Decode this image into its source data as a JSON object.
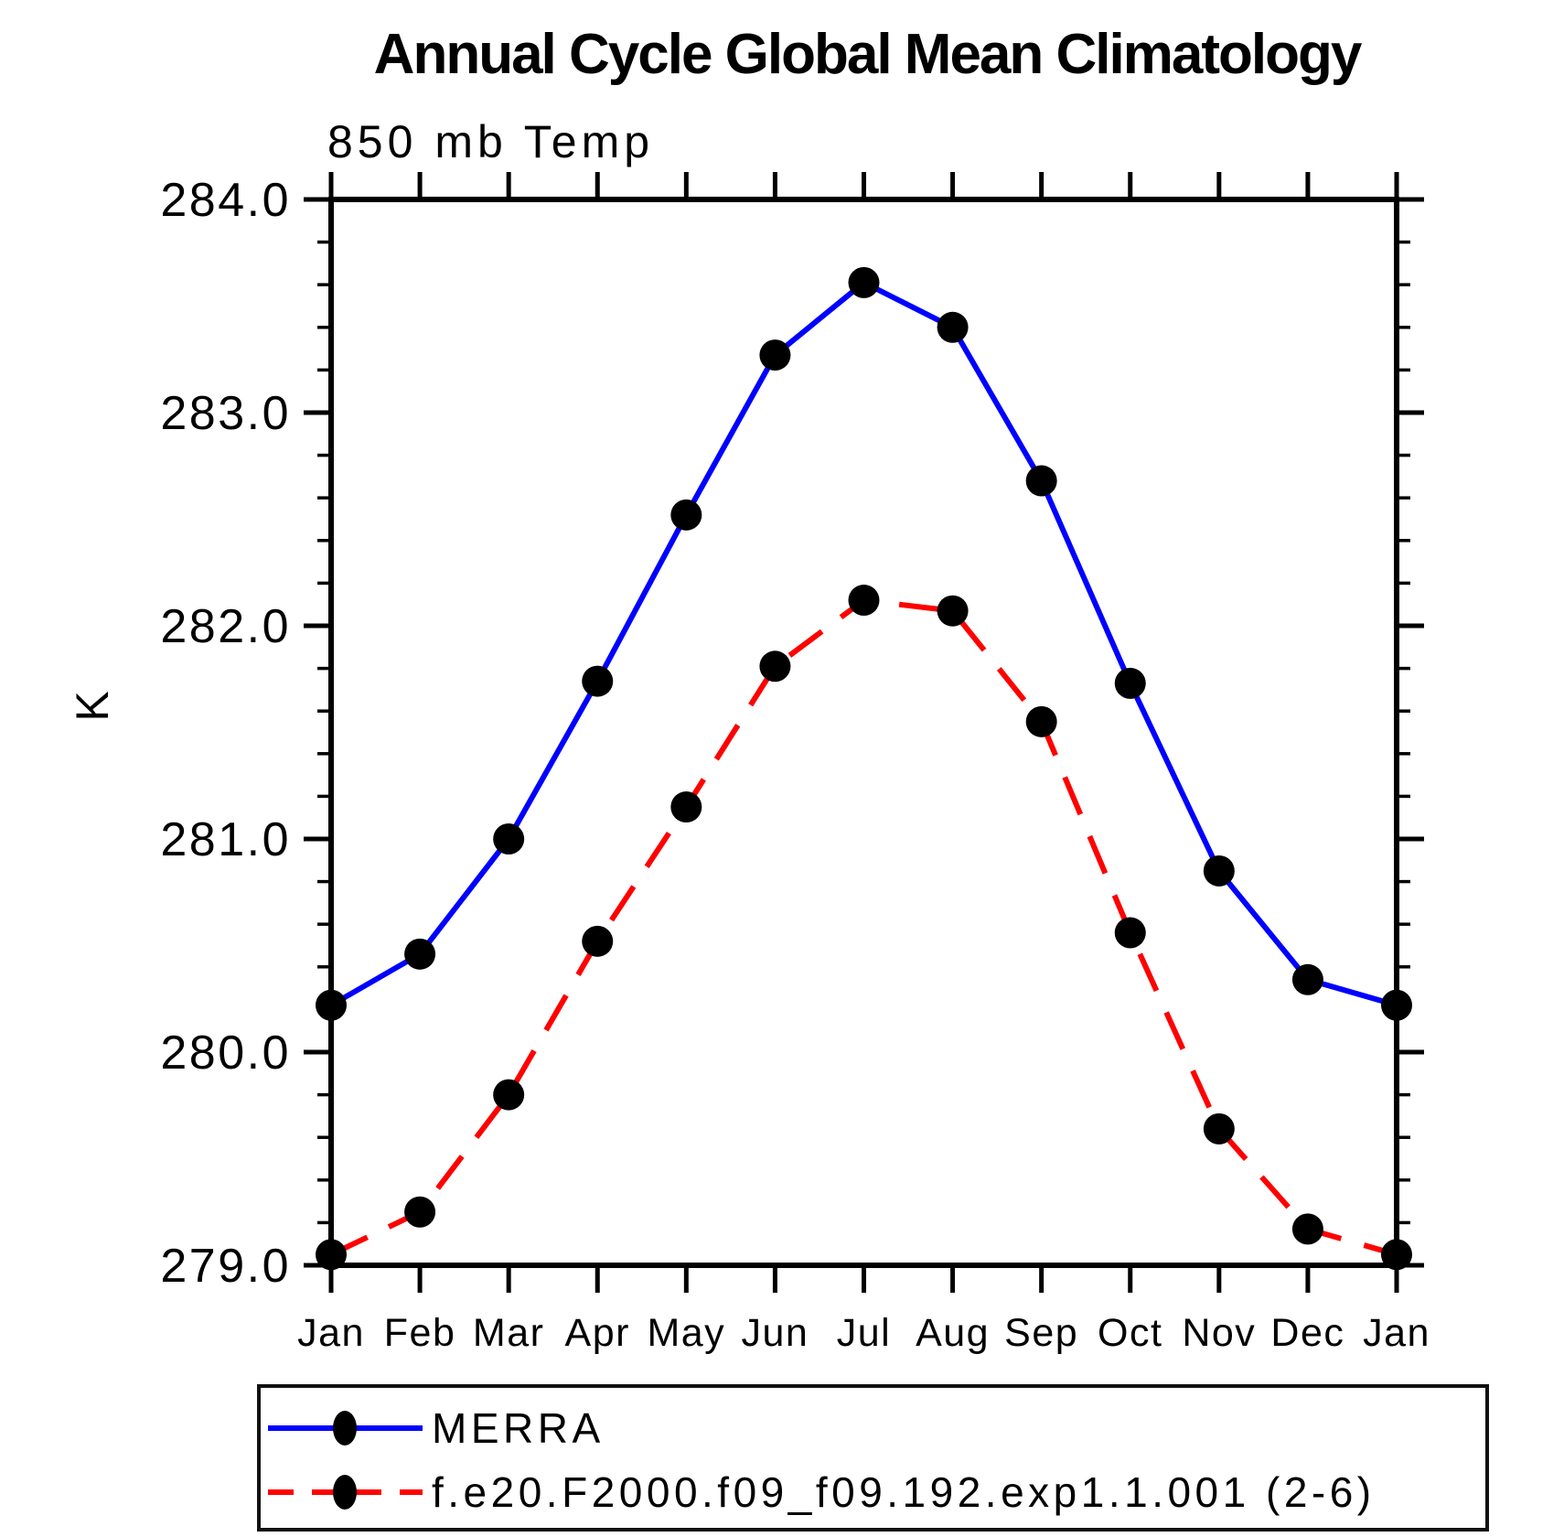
{
  "chart_data": {
    "type": "line",
    "title": "Annual Cycle Global Mean Climatology",
    "subtitle": "850 mb Temp",
    "ylabel": "K",
    "x_tick_labels": [
      "Jan",
      "Feb",
      "Mar",
      "Apr",
      "May",
      "Jun",
      "Jul",
      "Aug",
      "Sep",
      "Oct",
      "Nov",
      "Dec",
      "Jan"
    ],
    "ylim": [
      279.0,
      284.0
    ],
    "y_major_tick_values": [
      279.0,
      280.0,
      281.0,
      282.0,
      283.0,
      284.0
    ],
    "y_major_tick_labels": [
      "279.0",
      "280.0",
      "281.0",
      "282.0",
      "283.0",
      "284.0"
    ],
    "y_minor_tick_step": 0.2,
    "grid": false,
    "legend_position": "bottom-left",
    "axis_color": "#000000",
    "marker_shape": "filled-circle",
    "series": [
      {
        "name": "MERRA",
        "color": "#0000ff",
        "line_style": "solid",
        "marker_color": "#000000",
        "values": [
          280.22,
          280.46,
          281.0,
          281.74,
          282.52,
          283.27,
          283.61,
          283.4,
          282.68,
          281.73,
          280.85,
          280.34,
          280.22
        ]
      },
      {
        "name": "f.e20.F2000.f09_f09.192.exp1.1.001 (2-6)",
        "color": "#ff0000",
        "line_style": "dashed",
        "marker_color": "#000000",
        "values": [
          279.05,
          279.25,
          279.8,
          280.52,
          281.15,
          281.81,
          282.12,
          282.07,
          281.55,
          280.56,
          279.64,
          279.17,
          279.05
        ]
      }
    ]
  }
}
